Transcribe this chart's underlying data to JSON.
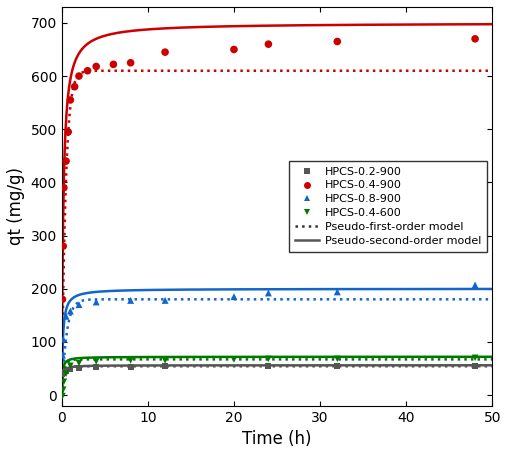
{
  "title": "",
  "xlabel": "Time (h)",
  "ylabel": "qt (mg/g)",
  "xlim": [
    0,
    50
  ],
  "ylim": [
    -20,
    730
  ],
  "yticks": [
    0,
    100,
    200,
    300,
    400,
    500,
    600,
    700
  ],
  "xticks": [
    0,
    10,
    20,
    30,
    40,
    50
  ],
  "series": {
    "HPCS-0.2-900": {
      "marker": "s",
      "data_t": [
        0.08,
        0.17,
        0.25,
        0.5,
        1.0,
        2.0,
        4.0,
        8.0,
        12.0,
        24.0,
        32.0,
        48.0
      ],
      "data_q": [
        40,
        42,
        44,
        46,
        48,
        50,
        52,
        53,
        54,
        54,
        54,
        55
      ]
    },
    "HPCS-0.4-900": {
      "marker": "o",
      "data_t": [
        0.08,
        0.17,
        0.25,
        0.5,
        0.75,
        1.0,
        1.5,
        2.0,
        3.0,
        4.0,
        6.0,
        8.0,
        12.0,
        20.0,
        24.0,
        32.0,
        48.0
      ],
      "data_q": [
        180,
        280,
        390,
        440,
        495,
        555,
        580,
        600,
        610,
        618,
        622,
        625,
        645,
        650,
        660,
        665,
        670
      ]
    },
    "HPCS-0.8-900": {
      "marker": "^",
      "data_t": [
        0.08,
        0.17,
        0.5,
        1.0,
        2.0,
        4.0,
        8.0,
        12.0,
        20.0,
        24.0,
        32.0,
        48.0
      ],
      "data_q": [
        75,
        105,
        148,
        158,
        170,
        175,
        178,
        178,
        185,
        192,
        194,
        207
      ]
    },
    "HPCS-0.4-600": {
      "marker": "v",
      "data_t": [
        0.08,
        0.17,
        0.25,
        0.5,
        1.0,
        2.0,
        4.0,
        8.0,
        12.0,
        20.0,
        24.0,
        32.0,
        48.0
      ],
      "data_q": [
        -2,
        10,
        25,
        40,
        55,
        60,
        63,
        65,
        65,
        67,
        68,
        68,
        70
      ]
    }
  },
  "pseudo_first_order": {
    "HPCS-0.2-900": {
      "qe": 54,
      "k1": 3.0
    },
    "HPCS-0.4-900": {
      "qe": 610,
      "k1": 2.2
    },
    "HPCS-0.8-900": {
      "qe": 180,
      "k1": 1.8
    },
    "HPCS-0.4-600": {
      "qe": 67,
      "k1": 3.5
    }
  },
  "pseudo_second_order": {
    "HPCS-0.2-900": {
      "qe": 56,
      "k2": 0.25
    },
    "HPCS-0.4-900": {
      "qe": 700,
      "k2": 0.008
    },
    "HPCS-0.8-900": {
      "qe": 200,
      "k2": 0.04
    },
    "HPCS-0.4-600": {
      "qe": 72,
      "k2": 0.18
    }
  },
  "colors": {
    "HPCS-0.2-900": "#555555",
    "HPCS-0.4-900": "#cc0000",
    "HPCS-0.8-900": "#1166cc",
    "HPCS-0.4-600": "#007700"
  },
  "marker_sizes": {
    "HPCS-0.2-900": 18,
    "HPCS-0.4-900": 30,
    "HPCS-0.8-900": 25,
    "HPCS-0.4-600": 22
  },
  "figsize": [
    5.08,
    4.55
  ],
  "dpi": 100,
  "legend_loc": "center right",
  "legend_fontsize": 8.0,
  "axis_fontsize": 12,
  "tick_labelsize": 10
}
